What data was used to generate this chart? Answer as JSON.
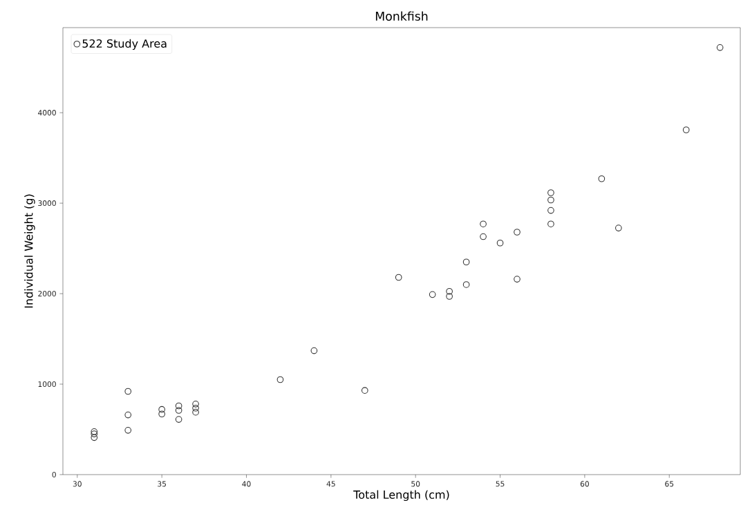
{
  "chart_data": {
    "type": "scatter",
    "title": "Monkfish",
    "xlabel": "Total Length (cm)",
    "ylabel": "Individual Weight (g)",
    "xlim": [
      29.15,
      69.2
    ],
    "ylim": [
      0,
      4940
    ],
    "xticks": [
      30,
      35,
      40,
      45,
      50,
      55,
      60,
      65
    ],
    "yticks": [
      0,
      1000,
      2000,
      3000,
      4000
    ],
    "grid": false,
    "legend": "top left",
    "marker": "circle",
    "series": [
      {
        "name": "522 Study Area",
        "color": "#333333",
        "x": [
          31,
          31,
          31,
          33,
          33,
          33,
          35,
          35,
          36,
          36,
          36,
          37,
          37,
          37,
          42,
          44,
          47,
          49,
          51,
          52,
          52,
          53,
          53,
          54,
          54,
          55,
          56,
          56,
          58,
          58,
          58,
          58,
          61,
          62,
          66,
          68
        ],
        "values": [
          475,
          450,
          410,
          920,
          660,
          490,
          720,
          670,
          760,
          710,
          610,
          780,
          735,
          690,
          1050,
          1370,
          930,
          2180,
          1990,
          2025,
          1970,
          2350,
          2100,
          2770,
          2630,
          2560,
          2680,
          2160,
          3115,
          3035,
          2920,
          2770,
          3270,
          2725,
          3810,
          4720
        ]
      }
    ]
  }
}
